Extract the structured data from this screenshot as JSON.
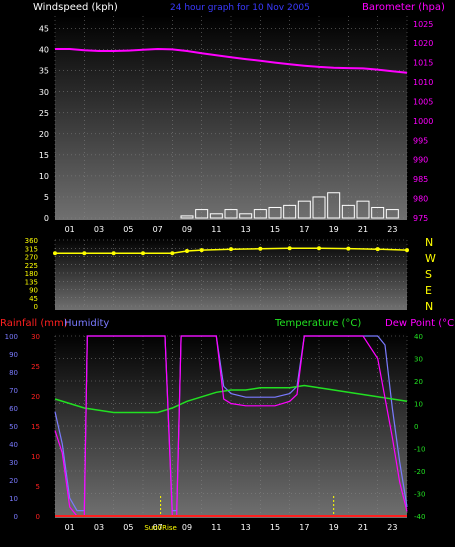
{
  "colors": {
    "background": "#000000",
    "windspeed_label": "#ffffff",
    "title": "#3a3aff",
    "barometer": "#ff00ff",
    "direction": "#ffff00",
    "rainfall": "#ff2020",
    "humidity": "#7a7aff",
    "temperature": "#22e022",
    "dewpoint": "#ff00ff",
    "sun_markers": "#ffff00",
    "grid": "#8a8a8a",
    "axis_ticks": "#ffffff"
  },
  "chart_data": [
    {
      "type": "line",
      "title": "24 hour graph for 10 Nov 2005",
      "ylabel_left": "Windspeed (kph)",
      "ylabel_right": "Barometer (hpa)",
      "x_ticks": [
        "01",
        "03",
        "05",
        "07",
        "09",
        "11",
        "13",
        "15",
        "17",
        "19",
        "21",
        "23"
      ],
      "y_left_ticks": [
        "0",
        "5",
        "10",
        "15",
        "20",
        "25",
        "30",
        "35",
        "40",
        "45"
      ],
      "y_right_ticks": [
        "975",
        "980",
        "985",
        "990",
        "995",
        "1000",
        "1005",
        "1010",
        "1015",
        "1020",
        "1025"
      ],
      "ylim_left": [
        0,
        48
      ],
      "ylim_right": [
        975,
        1027
      ],
      "series": [
        {
          "name": "Barometer (hpa)",
          "axis": "right",
          "x": [
            0,
            1,
            2,
            3,
            4,
            5,
            6,
            7,
            8,
            9,
            10,
            11,
            12,
            13,
            14,
            15,
            16,
            17,
            18,
            19,
            20,
            21,
            22,
            23,
            24
          ],
          "values": [
            1018.5,
            1018.5,
            1018.2,
            1018.0,
            1018.0,
            1018.1,
            1018.3,
            1018.5,
            1018.4,
            1018.0,
            1017.4,
            1016.9,
            1016.4,
            1015.9,
            1015.5,
            1015.0,
            1014.6,
            1014.2,
            1013.9,
            1013.7,
            1013.6,
            1013.5,
            1013.2,
            1012.8,
            1012.4
          ]
        },
        {
          "name": "Windspeed (kph)",
          "axis": "left",
          "x": [
            0,
            1,
            2,
            3,
            4,
            5,
            6,
            7,
            8,
            9,
            10,
            11,
            12,
            13,
            14,
            15,
            16,
            17,
            18,
            19,
            20,
            21,
            22,
            23,
            24
          ],
          "values": [
            0,
            0,
            0,
            0,
            0,
            0,
            0,
            0,
            0,
            0.5,
            2,
            1,
            2,
            1,
            2,
            2.5,
            3,
            4,
            5,
            6,
            3,
            4,
            2.5,
            2,
            0
          ]
        }
      ]
    },
    {
      "type": "scatter",
      "ylabel_right": [
        "N",
        "W",
        "S",
        "E",
        "N"
      ],
      "y_ticks": [
        "0",
        "45",
        "90",
        "135",
        "180",
        "225",
        "270",
        "315",
        "360"
      ],
      "ylim": [
        0,
        360
      ],
      "series": [
        {
          "name": "Wind direction",
          "x": [
            0,
            2,
            4,
            6,
            8,
            9,
            10,
            12,
            14,
            16,
            18,
            20,
            22,
            24
          ],
          "values": [
            288,
            288,
            288,
            288,
            288,
            300,
            305,
            310,
            312,
            315,
            315,
            313,
            310,
            305
          ]
        }
      ]
    },
    {
      "type": "line",
      "ylabel_left_1": "Rainfall (mm)",
      "ylabel_left_2": "Humidity",
      "ylabel_right_1": "Temperature (°C)",
      "ylabel_right_2": "Dew Point (°C)",
      "x_ticks": [
        "01",
        "03",
        "05",
        "07",
        "09",
        "11",
        "13",
        "15",
        "17",
        "19",
        "21",
        "23"
      ],
      "sun_labels": [
        "Sun0Rise"
      ],
      "humidity_ticks": [
        "0",
        "10",
        "20",
        "30",
        "40",
        "50",
        "60",
        "70",
        "80",
        "90",
        "100"
      ],
      "rain_ticks": [
        "0",
        "5",
        "10",
        "15",
        "20",
        "25",
        "30"
      ],
      "temp_ticks": [
        "-40",
        "-30",
        "-20",
        "-10",
        "0",
        "10",
        "20",
        "30",
        "40"
      ],
      "series": [
        {
          "name": "Humidity",
          "x": [
            0,
            0.5,
            1,
            1.5,
            2,
            2.2,
            3,
            4,
            5,
            6,
            7,
            7.5,
            8,
            8.3,
            8.6,
            9,
            10,
            11,
            11.5,
            12,
            13,
            14,
            15,
            16,
            16.5,
            17,
            18,
            19,
            20,
            21,
            22,
            22.5,
            23,
            23.5,
            24
          ],
          "values": [
            58,
            40,
            10,
            3,
            3,
            100,
            100,
            100,
            100,
            100,
            100,
            100,
            3,
            3,
            100,
            100,
            100,
            100,
            72,
            68,
            66,
            66,
            66,
            68,
            72,
            100,
            100,
            100,
            100,
            100,
            100,
            95,
            60,
            30,
            5
          ]
        },
        {
          "name": "Temperature (°C)",
          "x": [
            0,
            1,
            2,
            3,
            4,
            5,
            6,
            7,
            8,
            9,
            10,
            11,
            12,
            13,
            14,
            15,
            16,
            17,
            18,
            19,
            20,
            21,
            22,
            23,
            24
          ],
          "values": [
            12,
            10,
            8,
            7,
            6,
            6,
            6,
            6,
            8,
            11,
            13,
            15,
            16,
            16,
            17,
            17,
            17,
            18,
            17,
            16,
            15,
            14,
            13,
            12,
            11
          ]
        },
        {
          "name": "Dew Point (°C)",
          "x": [
            0,
            0.5,
            1,
            1.5,
            2,
            2.2,
            3,
            7.5,
            8,
            8.3,
            8.6,
            9,
            11,
            11.5,
            12,
            13,
            14,
            15,
            16,
            16.5,
            17,
            21,
            22,
            23,
            23.5,
            24
          ],
          "values": [
            -2,
            -12,
            -36,
            -40,
            -40,
            40,
            40,
            40,
            -40,
            -40,
            40,
            40,
            40,
            12,
            10,
            9,
            9,
            9,
            11,
            14,
            40,
            40,
            30,
            -5,
            -25,
            -38
          ]
        },
        {
          "name": "Rainfall (mm)",
          "x": [
            0,
            24
          ],
          "values": [
            0,
            0
          ]
        }
      ]
    }
  ]
}
